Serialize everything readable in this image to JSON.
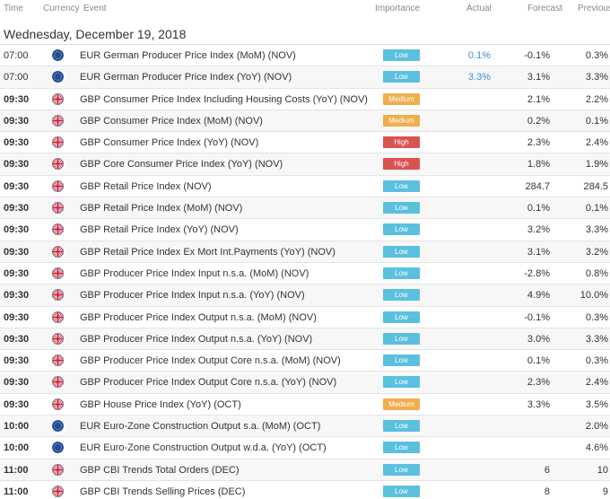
{
  "header": {
    "time": "Time",
    "currency": "Currency",
    "event": "Event",
    "importance": "Importance",
    "actual": "Actual",
    "forecast": "Forecast",
    "previous": "Previous"
  },
  "date_title": "Wednesday, December 19, 2018",
  "colors": {
    "low": "#5bc0de",
    "medium": "#f0ad4e",
    "high": "#d9534f",
    "actual_text": "#3a8fd8"
  },
  "rows": [
    {
      "time": "07:00",
      "bold": false,
      "flag": "eu-flag-icon",
      "event": "EUR German Producer Price Index (MoM) (NOV)",
      "importance": "Low",
      "level": "low",
      "actual": "0.1%",
      "forecast": "-0.1%",
      "previous": "0.3%"
    },
    {
      "time": "07:00",
      "bold": false,
      "flag": "eu-flag-icon",
      "event": "EUR German Producer Price Index (YoY) (NOV)",
      "importance": "Low",
      "level": "low",
      "actual": "3.3%",
      "forecast": "3.1%",
      "previous": "3.3%"
    },
    {
      "time": "09:30",
      "bold": true,
      "flag": "uk-flag-icon",
      "event": "GBP Consumer Price Index Including Housing Costs (YoY) (NOV)",
      "importance": "Medium",
      "level": "medium",
      "actual": "",
      "forecast": "2.1%",
      "previous": "2.2%"
    },
    {
      "time": "09:30",
      "bold": true,
      "flag": "uk-flag-icon",
      "event": "GBP Consumer Price Index (MoM) (NOV)",
      "importance": "Medium",
      "level": "medium",
      "actual": "",
      "forecast": "0.2%",
      "previous": "0.1%"
    },
    {
      "time": "09:30",
      "bold": true,
      "flag": "uk-flag-icon",
      "event": "GBP Consumer Price Index (YoY) (NOV)",
      "importance": "High",
      "level": "high",
      "actual": "",
      "forecast": "2.3%",
      "previous": "2.4%"
    },
    {
      "time": "09:30",
      "bold": true,
      "flag": "uk-flag-icon",
      "event": "GBP Core Consumer Price Index (YoY) (NOV)",
      "importance": "High",
      "level": "high",
      "actual": "",
      "forecast": "1.8%",
      "previous": "1.9%"
    },
    {
      "time": "09:30",
      "bold": true,
      "flag": "uk-flag-icon",
      "event": "GBP Retail Price Index (NOV)",
      "importance": "Low",
      "level": "low",
      "actual": "",
      "forecast": "284.7",
      "previous": "284.5"
    },
    {
      "time": "09:30",
      "bold": true,
      "flag": "uk-flag-icon",
      "event": "GBP Retail Price Index (MoM) (NOV)",
      "importance": "Low",
      "level": "low",
      "actual": "",
      "forecast": "0.1%",
      "previous": "0.1%"
    },
    {
      "time": "09:30",
      "bold": true,
      "flag": "uk-flag-icon",
      "event": "GBP Retail Price Index (YoY) (NOV)",
      "importance": "Low",
      "level": "low",
      "actual": "",
      "forecast": "3.2%",
      "previous": "3.3%"
    },
    {
      "time": "09:30",
      "bold": true,
      "flag": "uk-flag-icon",
      "event": "GBP Retail Price Index Ex Mort Int.Payments (YoY) (NOV)",
      "importance": "Low",
      "level": "low",
      "actual": "",
      "forecast": "3.1%",
      "previous": "3.2%"
    },
    {
      "time": "09:30",
      "bold": true,
      "flag": "uk-flag-icon",
      "event": "GBP Producer Price Index Input n.s.a. (MoM) (NOV)",
      "importance": "Low",
      "level": "low",
      "actual": "",
      "forecast": "-2.8%",
      "previous": "0.8%"
    },
    {
      "time": "09:30",
      "bold": true,
      "flag": "uk-flag-icon",
      "event": "GBP Producer Price Index Input n.s.a. (YoY) (NOV)",
      "importance": "Low",
      "level": "low",
      "actual": "",
      "forecast": "4.9%",
      "previous": "10.0%"
    },
    {
      "time": "09:30",
      "bold": true,
      "flag": "uk-flag-icon",
      "event": "GBP Producer Price Index Output n.s.a. (MoM) (NOV)",
      "importance": "Low",
      "level": "low",
      "actual": "",
      "forecast": "-0.1%",
      "previous": "0.3%"
    },
    {
      "time": "09:30",
      "bold": true,
      "flag": "uk-flag-icon",
      "event": "GBP Producer Price Index Output n.s.a. (YoY) (NOV)",
      "importance": "Low",
      "level": "low",
      "actual": "",
      "forecast": "3.0%",
      "previous": "3.3%"
    },
    {
      "time": "09:30",
      "bold": true,
      "flag": "uk-flag-icon",
      "event": "GBP Producer Price Index Output Core n.s.a. (MoM) (NOV)",
      "importance": "Low",
      "level": "low",
      "actual": "",
      "forecast": "0.1%",
      "previous": "0.3%"
    },
    {
      "time": "09:30",
      "bold": true,
      "flag": "uk-flag-icon",
      "event": "GBP Producer Price Index Output Core n.s.a. (YoY) (NOV)",
      "importance": "Low",
      "level": "low",
      "actual": "",
      "forecast": "2.3%",
      "previous": "2.4%"
    },
    {
      "time": "09:30",
      "bold": true,
      "flag": "uk-flag-icon",
      "event": "GBP House Price Index (YoY) (OCT)",
      "importance": "Medium",
      "level": "medium",
      "actual": "",
      "forecast": "3.3%",
      "previous": "3.5%"
    },
    {
      "time": "10:00",
      "bold": true,
      "flag": "eu-flag-icon",
      "event": "EUR Euro-Zone Construction Output s.a. (MoM) (OCT)",
      "importance": "Low",
      "level": "low",
      "actual": "",
      "forecast": "",
      "previous": "2.0%"
    },
    {
      "time": "10:00",
      "bold": true,
      "flag": "eu-flag-icon",
      "event": "EUR Euro-Zone Construction Output w.d.a. (YoY) (OCT)",
      "importance": "Low",
      "level": "low",
      "actual": "",
      "forecast": "",
      "previous": "4.6%"
    },
    {
      "time": "11:00",
      "bold": true,
      "flag": "uk-flag-icon",
      "event": "GBP CBI Trends Total Orders (DEC)",
      "importance": "Low",
      "level": "low",
      "actual": "",
      "forecast": "6",
      "previous": "10"
    },
    {
      "time": "11:00",
      "bold": true,
      "flag": "uk-flag-icon",
      "event": "GBP CBI Trends Selling Prices (DEC)",
      "importance": "Low",
      "level": "low",
      "actual": "",
      "forecast": "8",
      "previous": "9"
    }
  ]
}
